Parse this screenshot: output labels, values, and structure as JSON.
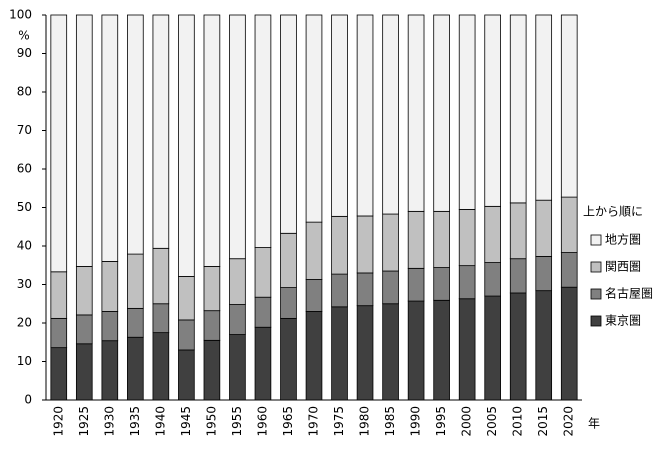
{
  "chart_data": {
    "type": "bar",
    "stacked": true,
    "y_label": "%",
    "x_label": "年",
    "legend_title": "上から順に",
    "categories": [
      "1920",
      "1925",
      "1930",
      "1935",
      "1940",
      "1945",
      "1950",
      "1955",
      "1960",
      "1965",
      "1970",
      "1975",
      "1980",
      "1985",
      "1990",
      "1995",
      "2000",
      "2005",
      "2010",
      "2015",
      "2020"
    ],
    "series": [
      {
        "name": "東京圏",
        "color": "#404040",
        "values": [
          13.6,
          14.6,
          15.4,
          16.3,
          17.5,
          13.0,
          15.5,
          17.0,
          18.9,
          21.2,
          23.0,
          24.2,
          24.5,
          25.0,
          25.7,
          25.9,
          26.3,
          27.0,
          27.8,
          28.4,
          29.3
        ]
      },
      {
        "name": "名古屋圏",
        "color": "#808080",
        "values": [
          7.6,
          7.5,
          7.6,
          7.5,
          7.5,
          7.8,
          7.7,
          7.8,
          7.8,
          8.0,
          8.3,
          8.5,
          8.5,
          8.5,
          8.5,
          8.5,
          8.6,
          8.7,
          8.9,
          8.9,
          9.0
        ]
      },
      {
        "name": "関西圏",
        "color": "#c0c0c0",
        "values": [
          12.1,
          12.6,
          13.0,
          14.1,
          14.4,
          11.3,
          11.5,
          11.9,
          12.9,
          14.1,
          14.9,
          15.0,
          14.8,
          14.8,
          14.8,
          14.6,
          14.6,
          14.6,
          14.5,
          14.6,
          14.4
        ]
      },
      {
        "name": "地方圏",
        "color": "#f2f2f2",
        "values": [
          66.7,
          65.3,
          64.0,
          62.1,
          60.6,
          67.9,
          65.3,
          63.3,
          60.4,
          56.7,
          53.8,
          52.3,
          52.2,
          51.7,
          51.0,
          51.0,
          50.5,
          49.7,
          48.8,
          48.1,
          47.3
        ]
      }
    ],
    "ylim": [
      0,
      100
    ],
    "yticks": [
      0,
      10,
      20,
      30,
      40,
      50,
      60,
      70,
      80,
      90,
      100
    ],
    "legend": "right"
  }
}
